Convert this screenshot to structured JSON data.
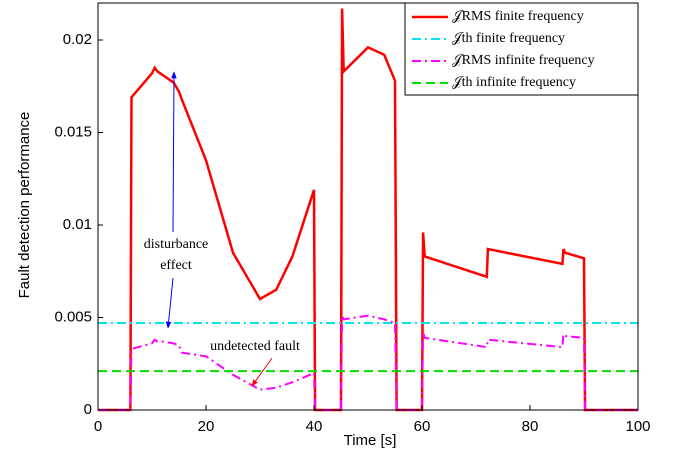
{
  "chart_data": {
    "type": "line",
    "xlabel": "Time [s]",
    "ylabel": "Fault detection performance",
    "xlim": [
      0,
      100
    ],
    "ylim": [
      0,
      0.022
    ],
    "xticks": [
      0,
      20,
      40,
      60,
      80,
      100
    ],
    "yticks": [
      0,
      0.005,
      0.01,
      0.015,
      0.02
    ],
    "grid": false,
    "legend": "upper right",
    "annotations": [
      {
        "text": "disturbance",
        "color": "#0000ff"
      },
      {
        "text": "effect",
        "color": "#0000ff"
      },
      {
        "text": "undetected fault",
        "color": "#ff0000"
      }
    ],
    "series": [
      {
        "name": "𝒥RMS finite frequency",
        "color": "#ff0000",
        "dash": "solid",
        "width": 2.5,
        "x": [
          0,
          6,
          6.2,
          10,
          10.5,
          11,
          12,
          14,
          15,
          15.5,
          20,
          25,
          30,
          33,
          35,
          36,
          40,
          40.2,
          45,
          45.2,
          45.5,
          50,
          53,
          55,
          55.3,
          60,
          60.2,
          60.5,
          72,
          72.2,
          86,
          86.2,
          86.5,
          90,
          90.2,
          100
        ],
        "values": [
          0,
          0,
          0.0169,
          0.0182,
          0.0185,
          0.0183,
          0.0181,
          0.0177,
          0.0172,
          0.0168,
          0.0135,
          0.0085,
          0.006,
          0.0065,
          0.0077,
          0.0083,
          0.0119,
          0,
          0,
          0.0217,
          0.0183,
          0.0196,
          0.0192,
          0.0178,
          0,
          0,
          0.0096,
          0.0083,
          0.0072,
          0.0087,
          0.0079,
          0.0087,
          0.0085,
          0.0082,
          0,
          0
        ]
      },
      {
        "name": "𝒥th finite frequency",
        "color": "#00e5ee",
        "dash": "dashdot",
        "width": 2,
        "x": [
          0,
          100
        ],
        "values": [
          0.0047,
          0.0047
        ]
      },
      {
        "name": "𝒥RMS infinite frequency",
        "color": "#ff00ff",
        "dash": "dashdot",
        "width": 2,
        "x": [
          0,
          6,
          6.2,
          10,
          10.5,
          11,
          12,
          14,
          15,
          15.5,
          20,
          25,
          30,
          33,
          35,
          36,
          40,
          40.2,
          45,
          45.2,
          45.5,
          50,
          53,
          55,
          55.3,
          60,
          60.2,
          60.5,
          72,
          72.2,
          86,
          86.2,
          86.5,
          90,
          90.2,
          100
        ],
        "values": [
          0,
          0,
          0.0033,
          0.0036,
          0.0038,
          0.0037,
          0.0037,
          0.0036,
          0.0035,
          0.0031,
          0.0029,
          0.0019,
          0.0011,
          0.0012,
          0.0014,
          0.0015,
          0.002,
          0,
          0,
          0.0051,
          0.0049,
          0.0051,
          0.0049,
          0.0047,
          0,
          0,
          0.0042,
          0.0039,
          0.0034,
          0.0038,
          0.0034,
          0.0041,
          0.004,
          0.0039,
          0,
          0
        ]
      },
      {
        "name": "𝒥th infinite frequency",
        "color": "#00dd00",
        "dash": "dash",
        "width": 2,
        "x": [
          0,
          100
        ],
        "values": [
          0.0021,
          0.0021
        ]
      }
    ]
  }
}
